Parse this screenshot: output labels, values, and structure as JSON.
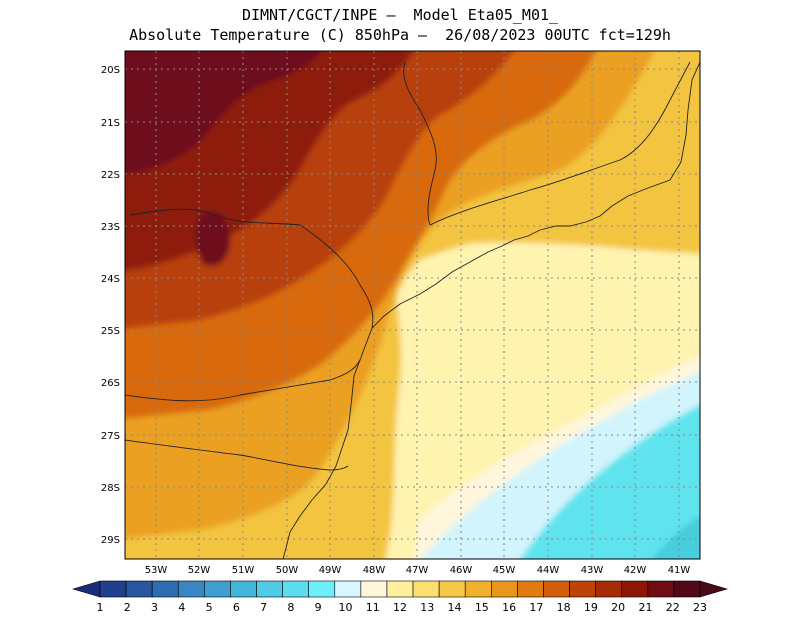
{
  "header": {
    "line1": "DIMNT/CGCT/INPE –  Model Eta05_M01_",
    "line2": "Absolute Temperature (C) 850hPa –  26/08/2023 00UTC fct=129h"
  },
  "axes": {
    "lat_labels": [
      "20S",
      "21S",
      "22S",
      "23S",
      "24S",
      "25S",
      "26S",
      "27S",
      "28S",
      "29S"
    ],
    "lon_labels": [
      "53W",
      "52W",
      "51W",
      "50W",
      "49W",
      "48W",
      "47W",
      "46W",
      "45W",
      "44W",
      "43W",
      "42W",
      "41W"
    ]
  },
  "colorbar": {
    "labels": [
      "1",
      "2",
      "3",
      "4",
      "5",
      "6",
      "7",
      "8",
      "9",
      "10",
      "11",
      "12",
      "13",
      "14",
      "15",
      "16",
      "17",
      "18",
      "19",
      "20",
      "21",
      "22",
      "23"
    ],
    "colors": [
      "#1f3f8f",
      "#2a56a0",
      "#2f6db2",
      "#3a86c2",
      "#3e9fd0",
      "#43b6dc",
      "#4fcbe6",
      "#5cdcef",
      "#6ef0fa",
      "#d8f6ff",
      "#fff7dc",
      "#fff0a0",
      "#fbe070",
      "#f5c846",
      "#efb02c",
      "#e9961e",
      "#e07a12",
      "#d15e0a",
      "#bd4306",
      "#a52c04",
      "#8c1804",
      "#700c14",
      "#520818"
    ],
    "underflow_color": "#1a2e78",
    "overflow_color": "#4a0a14"
  },
  "map_colors": {
    "extreme": "#6e0c1c",
    "very_hot": "#8e1f0c",
    "hot": "#b8400a",
    "warm": "#d86a10",
    "mild_warm": "#eba020",
    "mild": "#f3c440",
    "temperate": "#fbe07a",
    "cool": "#fff3b0",
    "cooler": "#fff6dc",
    "cold": "#d2f4fc",
    "colder": "#5fe4ef",
    "coldest": "#46cddb",
    "coast": "#222222",
    "grid": "#888888"
  }
}
